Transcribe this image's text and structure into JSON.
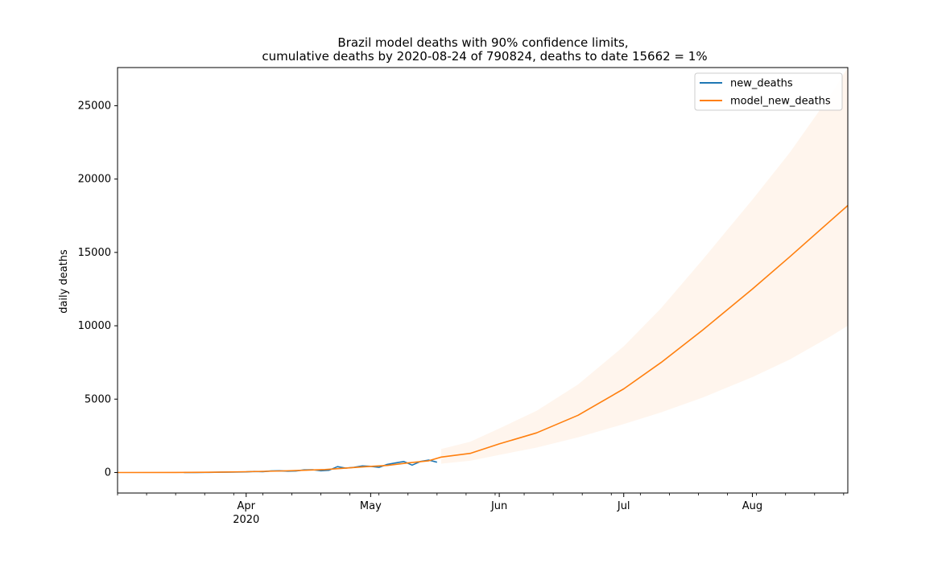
{
  "chart_data": {
    "type": "line",
    "title_line1": "Brazil model deaths with 90% confidence limits,",
    "title_line2": "cumulative deaths by 2020-08-24 of 790824, deaths to date 15662 = 1%",
    "xlabel": "",
    "ylabel": "daily deaths",
    "x_range": [
      "2020-03-01",
      "2020-08-24"
    ],
    "ylim": [
      -1400,
      27600
    ],
    "y_ticks": [
      0,
      5000,
      10000,
      15000,
      20000,
      25000
    ],
    "x_ticks": [
      {
        "date": "2020-04-01",
        "label": "Apr",
        "sublabel": "2020"
      },
      {
        "date": "2020-05-01",
        "label": "May",
        "sublabel": ""
      },
      {
        "date": "2020-06-01",
        "label": "Jun",
        "sublabel": ""
      },
      {
        "date": "2020-07-01",
        "label": "Jul",
        "sublabel": ""
      },
      {
        "date": "2020-08-01",
        "label": "Aug",
        "sublabel": ""
      }
    ],
    "grid": false,
    "legend_position": "top-right",
    "legend": [
      "new_deaths",
      "model_new_deaths"
    ],
    "colors": {
      "new_deaths": "#1f77b4",
      "model_new_deaths": "#ff7f0e",
      "band": "#ffe9d6"
    },
    "series": [
      {
        "name": "new_deaths",
        "x": [
          "2020-03-17",
          "2020-03-20",
          "2020-03-23",
          "2020-03-26",
          "2020-03-29",
          "2020-04-01",
          "2020-04-03",
          "2020-04-05",
          "2020-04-07",
          "2020-04-09",
          "2020-04-11",
          "2020-04-13",
          "2020-04-15",
          "2020-04-17",
          "2020-04-19",
          "2020-04-21",
          "2020-04-23",
          "2020-04-25",
          "2020-04-27",
          "2020-04-29",
          "2020-05-01",
          "2020-05-03",
          "2020-05-05",
          "2020-05-07",
          "2020-05-09",
          "2020-05-11",
          "2020-05-13",
          "2020-05-15",
          "2020-05-17"
        ],
        "y": [
          1,
          5,
          10,
          20,
          30,
          40,
          70,
          60,
          100,
          120,
          90,
          100,
          180,
          190,
          120,
          150,
          400,
          300,
          350,
          450,
          420,
          350,
          550,
          650,
          750,
          500,
          750,
          850,
          700
        ]
      },
      {
        "name": "model_new_deaths",
        "x": [
          "2020-03-01",
          "2020-03-15",
          "2020-03-25",
          "2020-04-01",
          "2020-04-10",
          "2020-04-20",
          "2020-04-30",
          "2020-05-05",
          "2020-05-10",
          "2020-05-15",
          "2020-05-18",
          "2020-05-25",
          "2020-06-01",
          "2020-06-10",
          "2020-06-20",
          "2020-07-01",
          "2020-07-10",
          "2020-07-20",
          "2020-08-01",
          "2020-08-10",
          "2020-08-20",
          "2020-08-24"
        ],
        "y": [
          0,
          5,
          20,
          50,
          110,
          200,
          400,
          480,
          650,
          800,
          1050,
          1300,
          1950,
          2700,
          3900,
          5700,
          7500,
          9700,
          12500,
          14700,
          17200,
          18200
        ]
      }
    ],
    "band": {
      "x": [
        "2020-05-18",
        "2020-05-25",
        "2020-06-01",
        "2020-06-10",
        "2020-06-20",
        "2020-07-01",
        "2020-07-10",
        "2020-07-20",
        "2020-08-01",
        "2020-08-10",
        "2020-08-20",
        "2020-08-24"
      ],
      "lower": [
        600,
        800,
        1200,
        1700,
        2400,
        3300,
        4100,
        5100,
        6500,
        7700,
        9300,
        10000
      ],
      "upper": [
        1600,
        2100,
        3000,
        4200,
        6000,
        8600,
        11200,
        14500,
        18600,
        21800,
        25800,
        27600
      ]
    }
  }
}
